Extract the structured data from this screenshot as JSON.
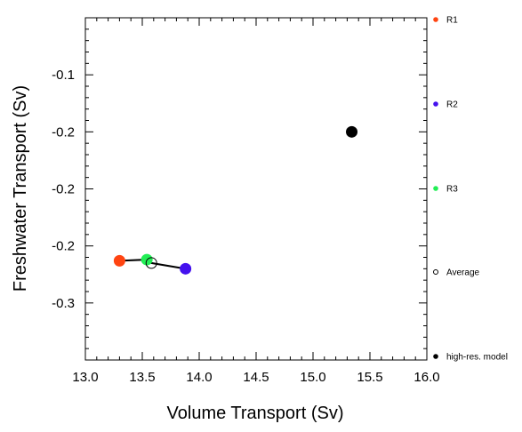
{
  "chart_data": {
    "type": "scatter",
    "xlabel": "Volume Transport (Sv)",
    "ylabel": "Freshwater Transport (Sv)",
    "xlim": [
      13.0,
      16.0
    ],
    "ylim": [
      -0.35,
      -0.05
    ],
    "x_ticks": [
      13.0,
      13.5,
      14.0,
      14.5,
      15.0,
      15.5,
      16.0
    ],
    "x_tick_labels": [
      "13.0",
      "13.5",
      "14.0",
      "14.5",
      "15.0",
      "15.5",
      "16.0"
    ],
    "y_ticks": [
      -0.1,
      -0.15,
      -0.2,
      -0.25,
      -0.3
    ],
    "y_tick_labels": [
      "-0.1",
      "-0.2",
      "-0.2",
      "-0.2",
      "-0.3"
    ],
    "grid": false,
    "legend_placement": "right, outside plot",
    "series": [
      {
        "name": "R1",
        "color": "#ff4411",
        "marker": "filled-circle",
        "x": 13.3,
        "y": -0.263
      },
      {
        "name": "R2",
        "color": "#4411ee",
        "marker": "filled-circle",
        "x": 13.88,
        "y": -0.27
      },
      {
        "name": "R3",
        "color": "#22ee55",
        "marker": "filled-circle",
        "x": 13.54,
        "y": -0.262
      },
      {
        "name": "Average",
        "color": "#000000",
        "marker": "open-circle",
        "x": 13.58,
        "y": -0.265
      },
      {
        "name": "high-res. model",
        "color": "#000000",
        "marker": "filled-circle",
        "x": 15.34,
        "y": -0.15
      }
    ],
    "connecting_line": [
      "R1",
      "R3",
      "Average",
      "R2"
    ]
  }
}
